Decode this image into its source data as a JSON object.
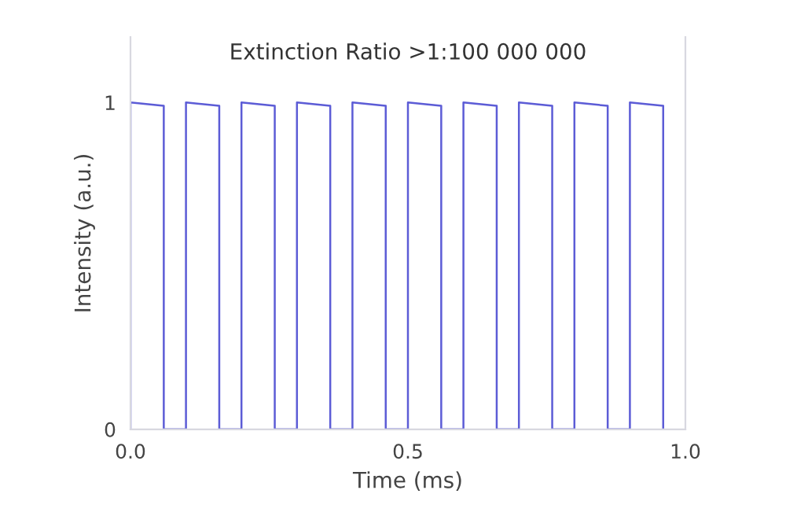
{
  "chart_data": {
    "type": "line",
    "title": "Extinction Ratio >1:100 000 000",
    "xlabel": "Time (ms)",
    "ylabel": "Intensity (a.u.)",
    "x": [
      0.0,
      0.0,
      0.06,
      0.06,
      0.1,
      0.1,
      0.16,
      0.16,
      0.2,
      0.2,
      0.26,
      0.26,
      0.3,
      0.3,
      0.36,
      0.36,
      0.4,
      0.4,
      0.46,
      0.46,
      0.5,
      0.5,
      0.56,
      0.56,
      0.6,
      0.6,
      0.66,
      0.66,
      0.7,
      0.7,
      0.76,
      0.76,
      0.8,
      0.8,
      0.86,
      0.86,
      0.9,
      0.9,
      0.96,
      0.96
    ],
    "series": [
      {
        "color": "#5c5cd6",
        "values": [
          0,
          1.0,
          0.99,
          0,
          0,
          1.0,
          0.99,
          0,
          0,
          1.0,
          0.99,
          0,
          0,
          1.0,
          0.99,
          0,
          0,
          1.0,
          0.99,
          0,
          0,
          1.0,
          0.99,
          0,
          0,
          1.0,
          0.99,
          0,
          0,
          1.0,
          0.99,
          0,
          0,
          1.0,
          0.99,
          0,
          0,
          1.0,
          0.99,
          0
        ]
      }
    ],
    "xlim": [
      0,
      1.0
    ],
    "ylim": [
      0,
      1.2
    ],
    "xticks": [
      {
        "value": 0,
        "label": "0.0"
      },
      {
        "value": 0.5,
        "label": "0.5"
      },
      {
        "value": 1.0,
        "label": "1.0"
      }
    ],
    "yticks": [
      0,
      1
    ]
  }
}
